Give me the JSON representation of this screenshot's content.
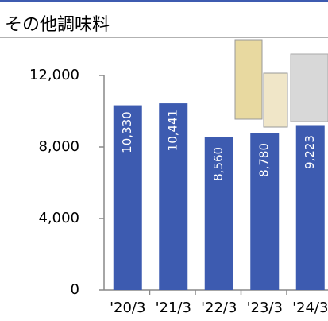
{
  "chart_data": {
    "type": "bar",
    "title": "その他調味料",
    "categories": [
      "'20/3",
      "'21/3",
      "'22/3",
      "'23/3",
      "'24/3"
    ],
    "values": [
      10330,
      10441,
      8560,
      8780,
      9223
    ],
    "value_labels": [
      "10,330",
      "10,441",
      "8,560",
      "8,780",
      "9,223"
    ],
    "color": "#3d5bb0",
    "ylim": [
      0,
      12000
    ],
    "yticks": [
      0,
      {
        "value": 4000,
        "label": "4,000"
      },
      {
        "value": 8000,
        "label": "8,000"
      },
      {
        "value": 12000,
        "label": "12,000"
      }
    ],
    "grid": false
  }
}
